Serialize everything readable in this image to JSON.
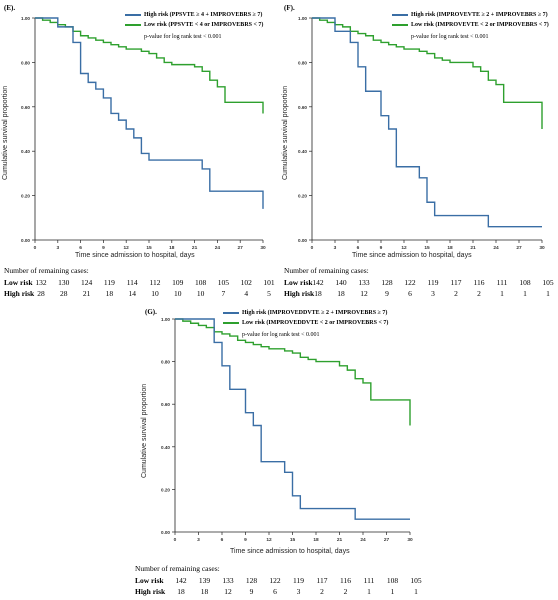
{
  "colors": {
    "high": "#3a6ea5",
    "low": "#2ea02e",
    "axis": "#222222",
    "grid": "#dddddd"
  },
  "chart_data": [
    {
      "panel_label": "(E).",
      "type": "line",
      "legend": [
        {
          "series": "high",
          "text": "High risk (PPSVTE ≥ 4 + IMPROVEBRS ≥ 7)"
        },
        {
          "series": "low",
          "text": "Low risk (PPSVTE < 4 or IMPROVEBRS < 7)"
        }
      ],
      "pvalue_text": "p-value for log rank test < 0.001",
      "ylabel": "Cumulative survival proportion",
      "xlabel": "Time since admission to hospital, days",
      "xlim": [
        0,
        30
      ],
      "ylim": [
        0,
        1
      ],
      "xticks": [
        0,
        3,
        6,
        9,
        12,
        15,
        18,
        21,
        24,
        27,
        30
      ],
      "yticks": [
        0.0,
        0.2,
        0.4,
        0.6,
        0.8,
        1.0
      ],
      "ytick_labels": [
        "0.00",
        "0.20",
        "0.40",
        "0.60",
        "0.80",
        "1.00"
      ],
      "series": [
        {
          "key": "high",
          "name": "High risk",
          "x": [
            0,
            3,
            5,
            6,
            7,
            8,
            9,
            10,
            11,
            12,
            13,
            14,
            15,
            22,
            23,
            29.5,
            30
          ],
          "y": [
            1.0,
            0.96,
            0.89,
            0.75,
            0.71,
            0.68,
            0.64,
            0.57,
            0.54,
            0.5,
            0.46,
            0.39,
            0.36,
            0.32,
            0.22,
            0.22,
            0.14
          ]
        },
        {
          "key": "low",
          "name": "Low risk",
          "x": [
            0,
            1,
            2,
            3,
            4,
            5,
            6,
            7,
            8,
            9,
            10,
            11,
            12,
            14,
            15,
            16,
            17,
            18,
            21,
            22,
            23,
            24,
            25,
            29.5,
            30
          ],
          "y": [
            1.0,
            0.99,
            0.98,
            0.97,
            0.96,
            0.94,
            0.92,
            0.91,
            0.9,
            0.89,
            0.88,
            0.87,
            0.86,
            0.85,
            0.84,
            0.82,
            0.8,
            0.79,
            0.78,
            0.76,
            0.72,
            0.69,
            0.62,
            0.62,
            0.57
          ]
        }
      ],
      "risk_table": {
        "title": "Number of remaining cases:",
        "rows": [
          {
            "label": "Low risk",
            "values": [
              "132",
              "130",
              "124",
              "119",
              "114",
              "112",
              "109",
              "108",
              "105",
              "102",
              "101"
            ]
          },
          {
            "label": "High risk",
            "values": [
              "28",
              "28",
              "21",
              "18",
              "14",
              "10",
              "10",
              "10",
              "7",
              "4",
              "5"
            ]
          }
        ]
      }
    },
    {
      "panel_label": "(F).",
      "type": "line",
      "legend": [
        {
          "series": "high",
          "text": "High risk (IMPROVEVTE ≥ 2 + IMPROVEBRS ≥ 7)"
        },
        {
          "series": "low",
          "text": "Low risk (IMPROVEVTE < 2 or IMPROVEBRS < 7)"
        }
      ],
      "pvalue_text": "p-value for log rank test < 0.001",
      "ylabel": "Cumulative survival proportion",
      "xlabel": "Time since admission to hospital, days",
      "xlim": [
        0,
        30
      ],
      "ylim": [
        0,
        1
      ],
      "xticks": [
        0,
        3,
        6,
        9,
        12,
        15,
        18,
        21,
        24,
        27,
        30
      ],
      "yticks": [
        0.0,
        0.2,
        0.4,
        0.6,
        0.8,
        1.0
      ],
      "ytick_labels": [
        "0.00",
        "0.20",
        "0.40",
        "0.60",
        "0.80",
        "1.00"
      ],
      "series": [
        {
          "key": "high",
          "name": "High risk",
          "x": [
            0,
            3,
            5,
            6,
            7,
            9,
            10,
            11,
            14,
            15,
            16,
            23,
            30
          ],
          "y": [
            1.0,
            0.94,
            0.89,
            0.78,
            0.67,
            0.56,
            0.5,
            0.33,
            0.28,
            0.17,
            0.11,
            0.06,
            0.06
          ]
        },
        {
          "key": "low",
          "name": "Low risk",
          "x": [
            0,
            1,
            2,
            3,
            4,
            5,
            6,
            7,
            8,
            9,
            10,
            11,
            12,
            14,
            15,
            16,
            17,
            18,
            21,
            22,
            23,
            24,
            25,
            29.5,
            30
          ],
          "y": [
            1.0,
            0.99,
            0.98,
            0.97,
            0.96,
            0.94,
            0.93,
            0.92,
            0.9,
            0.89,
            0.88,
            0.87,
            0.86,
            0.85,
            0.84,
            0.82,
            0.81,
            0.8,
            0.78,
            0.76,
            0.72,
            0.7,
            0.62,
            0.62,
            0.5
          ]
        }
      ],
      "risk_table": {
        "title": "Number of remaining cases:",
        "rows": [
          {
            "label": "Low risk",
            "values": [
              "142",
              "140",
              "133",
              "128",
              "122",
              "119",
              "117",
              "116",
              "111",
              "108",
              "105"
            ]
          },
          {
            "label": "High risk",
            "values": [
              "18",
              "18",
              "12",
              "9",
              "6",
              "3",
              "2",
              "2",
              "1",
              "1",
              "1"
            ]
          }
        ]
      }
    },
    {
      "panel_label": "(G).",
      "type": "line",
      "legend": [
        {
          "series": "high",
          "text": "High risk (IMPROVEDDVTE ≥ 2 + IMPROVEBRS ≥ 7)"
        },
        {
          "series": "low",
          "text": "Low risk (IMPROVEDDVTE < 2 or IMPROVEBRS < 7)"
        }
      ],
      "pvalue_text": "p-value for log rank test < 0.001",
      "ylabel": "Cumulative survival proportion",
      "xlabel": "Time since admission to hospital, days",
      "xlim": [
        0,
        30
      ],
      "ylim": [
        0,
        1
      ],
      "xticks": [
        0,
        3,
        6,
        9,
        12,
        15,
        18,
        21,
        24,
        27,
        30
      ],
      "yticks": [
        0.0,
        0.2,
        0.4,
        0.6,
        0.8,
        1.0
      ],
      "ytick_labels": [
        "0.00",
        "0.20",
        "0.40",
        "0.60",
        "0.80",
        "1.00"
      ],
      "series": [
        {
          "key": "high",
          "name": "High risk",
          "x": [
            0,
            4,
            5,
            6,
            7,
            9,
            10,
            11,
            14,
            15,
            16,
            23,
            30
          ],
          "y": [
            1.0,
            1.0,
            0.89,
            0.78,
            0.67,
            0.56,
            0.5,
            0.33,
            0.28,
            0.17,
            0.11,
            0.06,
            0.06
          ]
        },
        {
          "key": "low",
          "name": "Low risk",
          "x": [
            0,
            1,
            2,
            3,
            4,
            5,
            6,
            7,
            8,
            9,
            10,
            11,
            12,
            14,
            15,
            16,
            17,
            18,
            21,
            22,
            23,
            24,
            25,
            29.5,
            30
          ],
          "y": [
            1.0,
            0.99,
            0.98,
            0.97,
            0.96,
            0.94,
            0.93,
            0.92,
            0.9,
            0.89,
            0.88,
            0.87,
            0.86,
            0.85,
            0.84,
            0.82,
            0.81,
            0.8,
            0.78,
            0.76,
            0.72,
            0.7,
            0.62,
            0.62,
            0.5
          ]
        }
      ],
      "risk_table": {
        "title": "Number of remaining cases:",
        "rows": [
          {
            "label": "Low risk",
            "values": [
              "142",
              "139",
              "133",
              "128",
              "122",
              "119",
              "117",
              "116",
              "111",
              "108",
              "105"
            ]
          },
          {
            "label": "High risk",
            "values": [
              "18",
              "18",
              "12",
              "9",
              "6",
              "3",
              "2",
              "2",
              "1",
              "1",
              "1"
            ]
          }
        ]
      }
    }
  ]
}
